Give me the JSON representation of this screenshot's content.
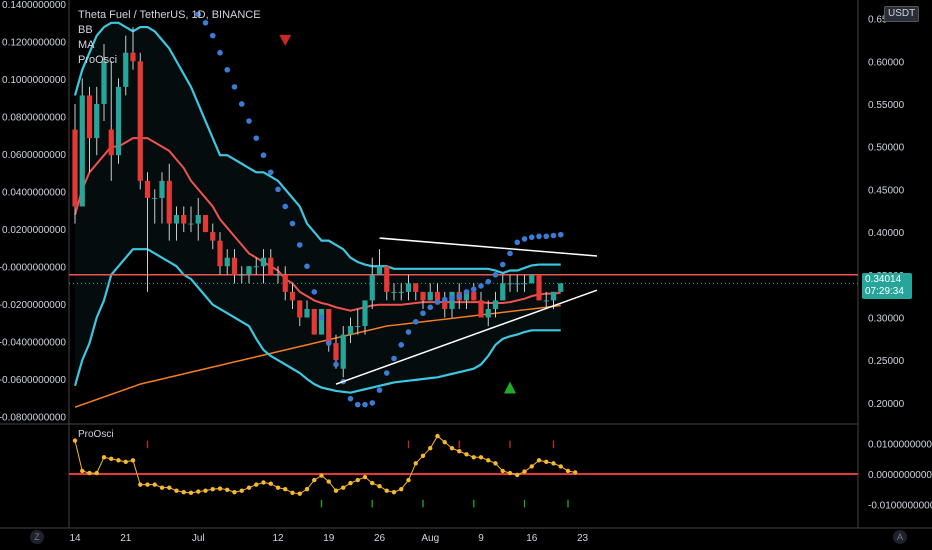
{
  "header": {
    "symbol_title": "Theta Fuel / TetherUS, 1D, BINANCE",
    "indicators": [
      "BB",
      "MA",
      "ProOsci"
    ],
    "currency": "USDT"
  },
  "oscillator": {
    "label": "ProOsci"
  },
  "last_price": {
    "value": "0.34014",
    "countdown": "07:29:34"
  },
  "bottom_buttons": {
    "left": "Z",
    "right": "A"
  },
  "colors": {
    "background": "#000000",
    "bb_band": "#3cc8e0",
    "bb_basis": "#ef5350",
    "ma": "#f57c20",
    "psar": "#3a7bd5",
    "up_candle": "#26a69a",
    "down_candle": "#e53935",
    "trendline": "#ffffff",
    "osc_line": "#f5b82e",
    "osc_zero": "#e53935"
  },
  "chart_data": {
    "type": "line",
    "title": "Theta Fuel / TetherUS, 1D, BINANCE",
    "x_axis_ticks": [
      "14",
      "21",
      "Jul",
      "12",
      "19",
      "26",
      "Aug",
      "9",
      "16",
      "23"
    ],
    "x_axis_tick_days": [
      0,
      7,
      17,
      28,
      35,
      42,
      49,
      56,
      63,
      70
    ],
    "right_axis": {
      "ticks": [
        "0.65",
        "0.60000",
        "0.55000",
        "0.50000",
        "0.45000",
        "0.40000",
        "0.35000",
        "0.30000",
        "0.25000",
        "0.20000"
      ],
      "tick_values": [
        0.65,
        0.6,
        0.55,
        0.5,
        0.45,
        0.4,
        0.35,
        0.3,
        0.25,
        0.2
      ],
      "range": [
        0.18,
        0.66
      ]
    },
    "left_axis": {
      "ticks": [
        "0.1400000000",
        "0.1200000000",
        "0.1000000000",
        "0.0800000000",
        "0.0600000000",
        "0.0400000000",
        "0.0200000000",
        "-0.0000000000",
        "-0.0200000000",
        "-0.0400000000",
        "-0.0600000000",
        "-0.0800000000"
      ],
      "tick_values": [
        0.14,
        0.12,
        0.1,
        0.08,
        0.06,
        0.04,
        0.02,
        0.0,
        -0.02,
        -0.04,
        -0.06,
        -0.08
      ]
    },
    "osc_axis": {
      "ticks": [
        "0.0100000000",
        "0.0000000000",
        "-0.0100000000"
      ],
      "tick_values": [
        0.01,
        0.0,
        -0.01
      ],
      "range": [
        -0.0145,
        0.0145
      ]
    },
    "candles_ohlc": [
      [
        0.52,
        0.55,
        0.41,
        0.43
      ],
      [
        0.43,
        0.58,
        0.43,
        0.56
      ],
      [
        0.56,
        0.57,
        0.47,
        0.51
      ],
      [
        0.51,
        0.57,
        0.49,
        0.55
      ],
      [
        0.55,
        0.62,
        0.53,
        0.6
      ],
      [
        0.52,
        0.6,
        0.46,
        0.49
      ],
      [
        0.49,
        0.58,
        0.48,
        0.57
      ],
      [
        0.57,
        0.63,
        0.56,
        0.61
      ],
      [
        0.61,
        0.64,
        0.59,
        0.6
      ],
      [
        0.6,
        0.61,
        0.45,
        0.46
      ],
      [
        0.46,
        0.47,
        0.33,
        0.44
      ],
      [
        0.44,
        0.45,
        0.41,
        0.44
      ],
      [
        0.44,
        0.47,
        0.41,
        0.46
      ],
      [
        0.46,
        0.48,
        0.39,
        0.41
      ],
      [
        0.41,
        0.43,
        0.39,
        0.42
      ],
      [
        0.42,
        0.43,
        0.4,
        0.41
      ],
      [
        0.41,
        0.43,
        0.4,
        0.41
      ],
      [
        0.41,
        0.44,
        0.39,
        0.42
      ],
      [
        0.42,
        0.42,
        0.4,
        0.4
      ],
      [
        0.4,
        0.41,
        0.38,
        0.39
      ],
      [
        0.39,
        0.4,
        0.35,
        0.36
      ],
      [
        0.36,
        0.38,
        0.35,
        0.37
      ],
      [
        0.37,
        0.38,
        0.34,
        0.35
      ],
      [
        0.35,
        0.36,
        0.34,
        0.35
      ],
      [
        0.35,
        0.36,
        0.34,
        0.36
      ],
      [
        0.36,
        0.37,
        0.35,
        0.36
      ],
      [
        0.36,
        0.38,
        0.34,
        0.37
      ],
      [
        0.37,
        0.38,
        0.35,
        0.35
      ],
      [
        0.35,
        0.36,
        0.34,
        0.35
      ],
      [
        0.35,
        0.36,
        0.32,
        0.33
      ],
      [
        0.33,
        0.34,
        0.31,
        0.32
      ],
      [
        0.32,
        0.32,
        0.29,
        0.3
      ],
      [
        0.3,
        0.32,
        0.3,
        0.31
      ],
      [
        0.31,
        0.31,
        0.28,
        0.28
      ],
      [
        0.28,
        0.31,
        0.28,
        0.31
      ],
      [
        0.31,
        0.31,
        0.26,
        0.27
      ],
      [
        0.27,
        0.28,
        0.24,
        0.25
      ],
      [
        0.24,
        0.29,
        0.23,
        0.28
      ],
      [
        0.28,
        0.3,
        0.27,
        0.29
      ],
      [
        0.29,
        0.31,
        0.28,
        0.29
      ],
      [
        0.29,
        0.32,
        0.28,
        0.32
      ],
      [
        0.32,
        0.37,
        0.31,
        0.35
      ],
      [
        0.35,
        0.38,
        0.35,
        0.36
      ],
      [
        0.36,
        0.36,
        0.32,
        0.33
      ],
      [
        0.33,
        0.34,
        0.32,
        0.33
      ],
      [
        0.33,
        0.34,
        0.32,
        0.33
      ],
      [
        0.33,
        0.35,
        0.32,
        0.34
      ],
      [
        0.34,
        0.34,
        0.32,
        0.33
      ],
      [
        0.33,
        0.33,
        0.31,
        0.32
      ],
      [
        0.32,
        0.34,
        0.32,
        0.33
      ],
      [
        0.33,
        0.34,
        0.32,
        0.32
      ],
      [
        0.32,
        0.33,
        0.3,
        0.31
      ],
      [
        0.31,
        0.33,
        0.3,
        0.33
      ],
      [
        0.33,
        0.34,
        0.31,
        0.32
      ],
      [
        0.32,
        0.33,
        0.31,
        0.33
      ],
      [
        0.33,
        0.34,
        0.32,
        0.32
      ],
      [
        0.32,
        0.33,
        0.3,
        0.3
      ],
      [
        0.3,
        0.32,
        0.29,
        0.31
      ],
      [
        0.31,
        0.33,
        0.3,
        0.32
      ],
      [
        0.32,
        0.35,
        0.32,
        0.34
      ],
      [
        0.34,
        0.35,
        0.33,
        0.34
      ],
      [
        0.34,
        0.35,
        0.33,
        0.34
      ],
      [
        0.34,
        0.35,
        0.33,
        0.34
      ],
      [
        0.34,
        0.35,
        0.34,
        0.35
      ],
      [
        0.35,
        0.35,
        0.32,
        0.32
      ],
      [
        0.32,
        0.33,
        0.31,
        0.32
      ],
      [
        0.32,
        0.33,
        0.31,
        0.33
      ],
      [
        0.33,
        0.34,
        0.33,
        0.34
      ]
    ],
    "bb_upper": [
      0.56,
      0.59,
      0.61,
      0.63,
      0.64,
      0.645,
      0.645,
      0.64,
      0.635,
      0.64,
      0.64,
      0.635,
      0.625,
      0.615,
      0.6,
      0.585,
      0.57,
      0.55,
      0.53,
      0.51,
      0.49,
      0.49,
      0.485,
      0.48,
      0.475,
      0.47,
      0.47,
      0.465,
      0.46,
      0.45,
      0.44,
      0.43,
      0.41,
      0.4,
      0.39,
      0.39,
      0.385,
      0.38,
      0.37,
      0.365,
      0.362,
      0.36,
      0.36,
      0.36,
      0.357,
      0.357,
      0.357,
      0.357,
      0.357,
      0.357,
      0.357,
      0.357,
      0.357,
      0.357,
      0.357,
      0.357,
      0.357,
      0.357,
      0.355,
      0.352,
      0.355,
      0.355,
      0.358,
      0.361,
      0.362,
      0.362,
      0.362,
      0.362
    ],
    "bb_basis": [
      0.42,
      0.45,
      0.47,
      0.48,
      0.49,
      0.5,
      0.5,
      0.505,
      0.51,
      0.51,
      0.51,
      0.505,
      0.5,
      0.495,
      0.485,
      0.475,
      0.46,
      0.45,
      0.44,
      0.43,
      0.415,
      0.405,
      0.395,
      0.385,
      0.375,
      0.37,
      0.365,
      0.36,
      0.355,
      0.345,
      0.34,
      0.33,
      0.325,
      0.32,
      0.317,
      0.315,
      0.312,
      0.31,
      0.308,
      0.31,
      0.312,
      0.314,
      0.315,
      0.315,
      0.315,
      0.315,
      0.316,
      0.317,
      0.318,
      0.318,
      0.318,
      0.318,
      0.318,
      0.318,
      0.318,
      0.318,
      0.318,
      0.317,
      0.317,
      0.317,
      0.318,
      0.32,
      0.322,
      0.325,
      0.327,
      0.328,
      0.328,
      0.329
    ],
    "bb_lower": [
      0.22,
      0.25,
      0.27,
      0.3,
      0.32,
      0.35,
      0.36,
      0.37,
      0.38,
      0.38,
      0.38,
      0.375,
      0.37,
      0.365,
      0.36,
      0.35,
      0.345,
      0.335,
      0.325,
      0.315,
      0.31,
      0.305,
      0.3,
      0.295,
      0.29,
      0.275,
      0.262,
      0.255,
      0.25,
      0.245,
      0.24,
      0.235,
      0.228,
      0.222,
      0.218,
      0.216,
      0.214,
      0.213,
      0.212,
      0.214,
      0.216,
      0.218,
      0.22,
      0.222,
      0.224,
      0.225,
      0.226,
      0.227,
      0.228,
      0.229,
      0.23,
      0.232,
      0.234,
      0.236,
      0.238,
      0.24,
      0.245,
      0.255,
      0.268,
      0.275,
      0.278,
      0.28,
      0.283,
      0.285,
      0.285,
      0.285,
      0.285,
      0.285
    ],
    "ma": [
      0.195,
      0.198,
      0.201,
      0.204,
      0.207,
      0.21,
      0.213,
      0.216,
      0.219,
      0.222,
      0.224,
      0.226,
      0.228,
      0.23,
      0.232,
      0.234,
      0.236,
      0.238,
      0.24,
      0.242,
      0.244,
      0.246,
      0.248,
      0.25,
      0.252,
      0.254,
      0.256,
      0.258,
      0.26,
      0.262,
      0.264,
      0.266,
      0.268,
      0.27,
      0.272,
      0.274,
      0.276,
      0.278,
      0.28,
      0.282,
      0.284,
      0.286,
      0.288,
      0.29,
      0.291,
      0.292,
      0.293,
      0.294,
      0.295,
      0.296,
      0.297,
      0.298,
      0.299,
      0.3,
      0.301,
      0.302,
      0.303,
      0.304,
      0.305,
      0.306,
      0.307,
      0.308,
      0.309,
      0.31,
      0.311,
      0.312,
      0.313,
      0.314
    ],
    "psar": [
      [
        17,
        0.655
      ],
      [
        18,
        0.645
      ],
      [
        19,
        0.63
      ],
      [
        20,
        0.61
      ],
      [
        21,
        0.59
      ],
      [
        22,
        0.57
      ],
      [
        23,
        0.55
      ],
      [
        24,
        0.53
      ],
      [
        25,
        0.51
      ],
      [
        26,
        0.49
      ],
      [
        27,
        0.47
      ],
      [
        28,
        0.45
      ],
      [
        29,
        0.43
      ],
      [
        30,
        0.41
      ],
      [
        31,
        0.385
      ],
      [
        32,
        0.36
      ],
      [
        33,
        0.33
      ],
      [
        34,
        0.3
      ],
      [
        35,
        0.27
      ],
      [
        36,
        0.245
      ],
      [
        37,
        0.225
      ],
      [
        38,
        0.205
      ],
      [
        39,
        0.198
      ],
      [
        40,
        0.198
      ],
      [
        41,
        0.2
      ],
      [
        42,
        0.215
      ],
      [
        43,
        0.235
      ],
      [
        44,
        0.252
      ],
      [
        45,
        0.268
      ],
      [
        46,
        0.283
      ],
      [
        47,
        0.295
      ],
      [
        48,
        0.305
      ],
      [
        49,
        0.312
      ],
      [
        50,
        0.318
      ],
      [
        51,
        0.321
      ],
      [
        52,
        0.323
      ],
      [
        53,
        0.325
      ],
      [
        54,
        0.33
      ],
      [
        55,
        0.333
      ],
      [
        56,
        0.337
      ],
      [
        57,
        0.342
      ],
      [
        58,
        0.35
      ],
      [
        59,
        0.362
      ],
      [
        60,
        0.375
      ],
      [
        61,
        0.388
      ],
      [
        62,
        0.392
      ],
      [
        63,
        0.394
      ],
      [
        64,
        0.395
      ],
      [
        65,
        0.395
      ],
      [
        66,
        0.396
      ],
      [
        67,
        0.397
      ]
    ],
    "trendlines": [
      {
        "from": [
          42,
          0.393
        ],
        "to": [
          72,
          0.372
        ]
      },
      {
        "from": [
          36,
          0.222
        ],
        "to": [
          72,
          0.332
        ]
      }
    ],
    "horizontal_line": 0.35,
    "markers": [
      {
        "type": "sell",
        "day": 29,
        "price": 0.625
      },
      {
        "type": "buy",
        "day": 60,
        "price": 0.218
      }
    ],
    "osc_values": [
      0.011,
      0.001,
      0.0003,
      0.0003,
      0.0055,
      0.005,
      0.0045,
      0.004,
      0.0045,
      -0.0035,
      -0.0035,
      -0.0035,
      -0.0045,
      -0.0045,
      -0.0055,
      -0.006,
      -0.0062,
      -0.0058,
      -0.0055,
      -0.005,
      -0.0048,
      -0.0052,
      -0.006,
      -0.0055,
      -0.0045,
      -0.0035,
      -0.0028,
      -0.0032,
      -0.0045,
      -0.005,
      -0.0062,
      -0.0065,
      -0.005,
      -0.002,
      -0.0005,
      -0.0025,
      -0.0055,
      -0.0045,
      -0.003,
      -0.002,
      -0.001,
      -0.003,
      -0.004,
      -0.0055,
      -0.006,
      -0.005,
      -0.002,
      0.0035,
      0.006,
      0.0085,
      0.0125,
      0.0105,
      0.0085,
      0.0075,
      0.0065,
      0.0055,
      0.0055,
      0.0045,
      0.0035,
      0.001,
      0.0003,
      -0.0003,
      0.0008,
      0.0025,
      0.0045,
      0.004,
      0.0035,
      0.0025,
      0.001,
      0.0005
    ],
    "osc_tick_marks": [
      {
        "day": 10,
        "color": "red"
      },
      {
        "day": 34,
        "color": "green"
      },
      {
        "day": 41,
        "color": "green"
      },
      {
        "day": 46,
        "color": "red"
      },
      {
        "day": 48,
        "color": "green"
      },
      {
        "day": 53,
        "color": "red"
      },
      {
        "day": 55,
        "color": "green"
      },
      {
        "day": 60,
        "color": "red"
      },
      {
        "day": 62,
        "color": "green"
      },
      {
        "day": 66,
        "color": "red"
      },
      {
        "day": 68,
        "color": "green"
      }
    ]
  }
}
